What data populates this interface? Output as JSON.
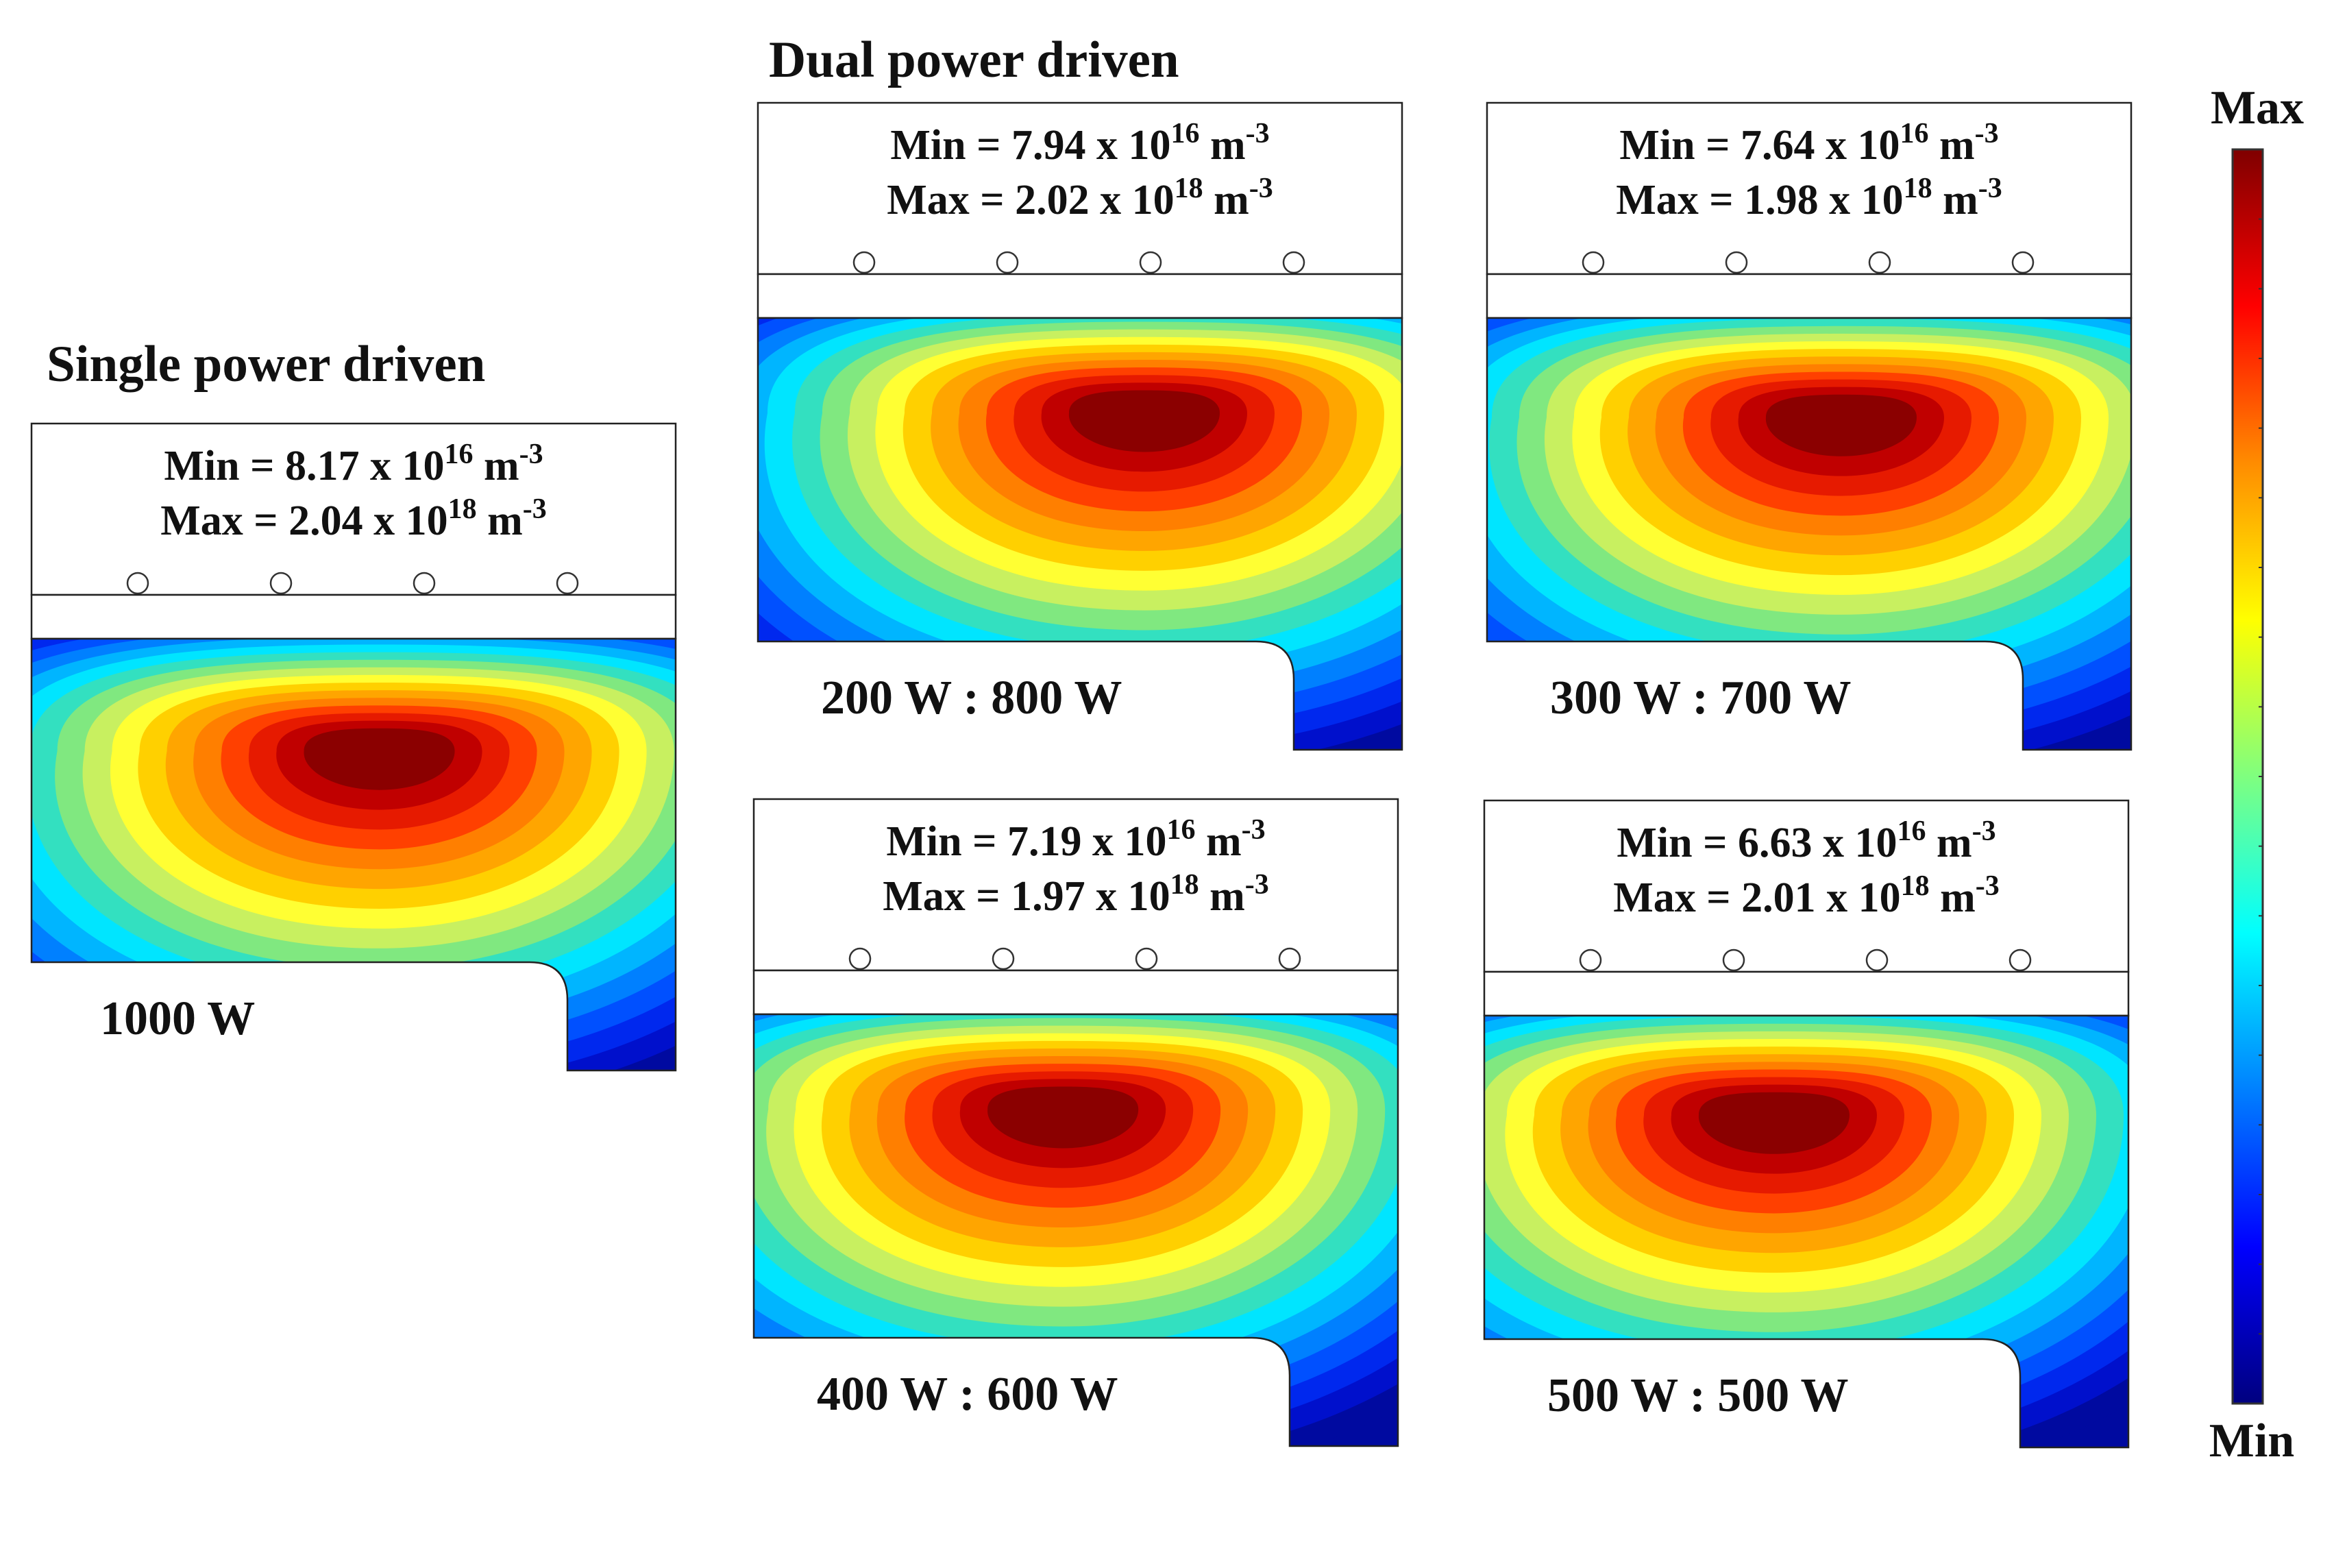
{
  "headings": {
    "single": "Single power driven",
    "dual": "Dual power driven"
  },
  "panels": [
    {
      "id": "single",
      "power_label": "1000 W",
      "min": "Min = 8.17 x 10",
      "min_exp": "16",
      "max": "Max = 2.04 x 10",
      "max_exp": "18",
      "unit": "m",
      "unit_exp": "-3"
    },
    {
      "id": "dual-200-800",
      "power_label": "200 W : 800 W",
      "min": "Min = 7.94 x 10",
      "min_exp": "16",
      "max": "Max = 2.02 x 10",
      "max_exp": "18",
      "unit": "m",
      "unit_exp": "-3"
    },
    {
      "id": "dual-300-700",
      "power_label": "300 W : 700 W",
      "min": "Min = 7.64 x 10",
      "min_exp": "16",
      "max": "Max = 1.98 x 10",
      "max_exp": "18",
      "unit": "m",
      "unit_exp": "-3"
    },
    {
      "id": "dual-400-600",
      "power_label": "400 W : 600 W",
      "min": "Min = 7.19 x 10",
      "min_exp": "16",
      "max": "Max = 1.97 x 10",
      "max_exp": "18",
      "unit": "m",
      "unit_exp": "-3"
    },
    {
      "id": "dual-500-500",
      "power_label": "500 W : 500 W",
      "min": "Min = 6.63 x 10",
      "min_exp": "16",
      "max": "Max = 2.01 x 10",
      "max_exp": "18",
      "unit": "m",
      "unit_exp": "-3"
    }
  ],
  "colorbar": {
    "max_label": "Max",
    "min_label": "Min",
    "colors": [
      "#7f0000",
      "#ff0000",
      "#ff8c00",
      "#ffff00",
      "#7fff7f",
      "#00ffff",
      "#0080ff",
      "#0000ff",
      "#00007f"
    ]
  },
  "contour_colors": [
    "#8b0000",
    "#c00000",
    "#e61a00",
    "#ff4000",
    "#ff7f00",
    "#ffa500",
    "#ffd000",
    "#ffff33",
    "#c8f060",
    "#80e880",
    "#33e0c0",
    "#00e5ff",
    "#00b5ff",
    "#0080ff",
    "#0050ff",
    "#0028ee",
    "#0010cc",
    "#000aa0"
  ]
}
